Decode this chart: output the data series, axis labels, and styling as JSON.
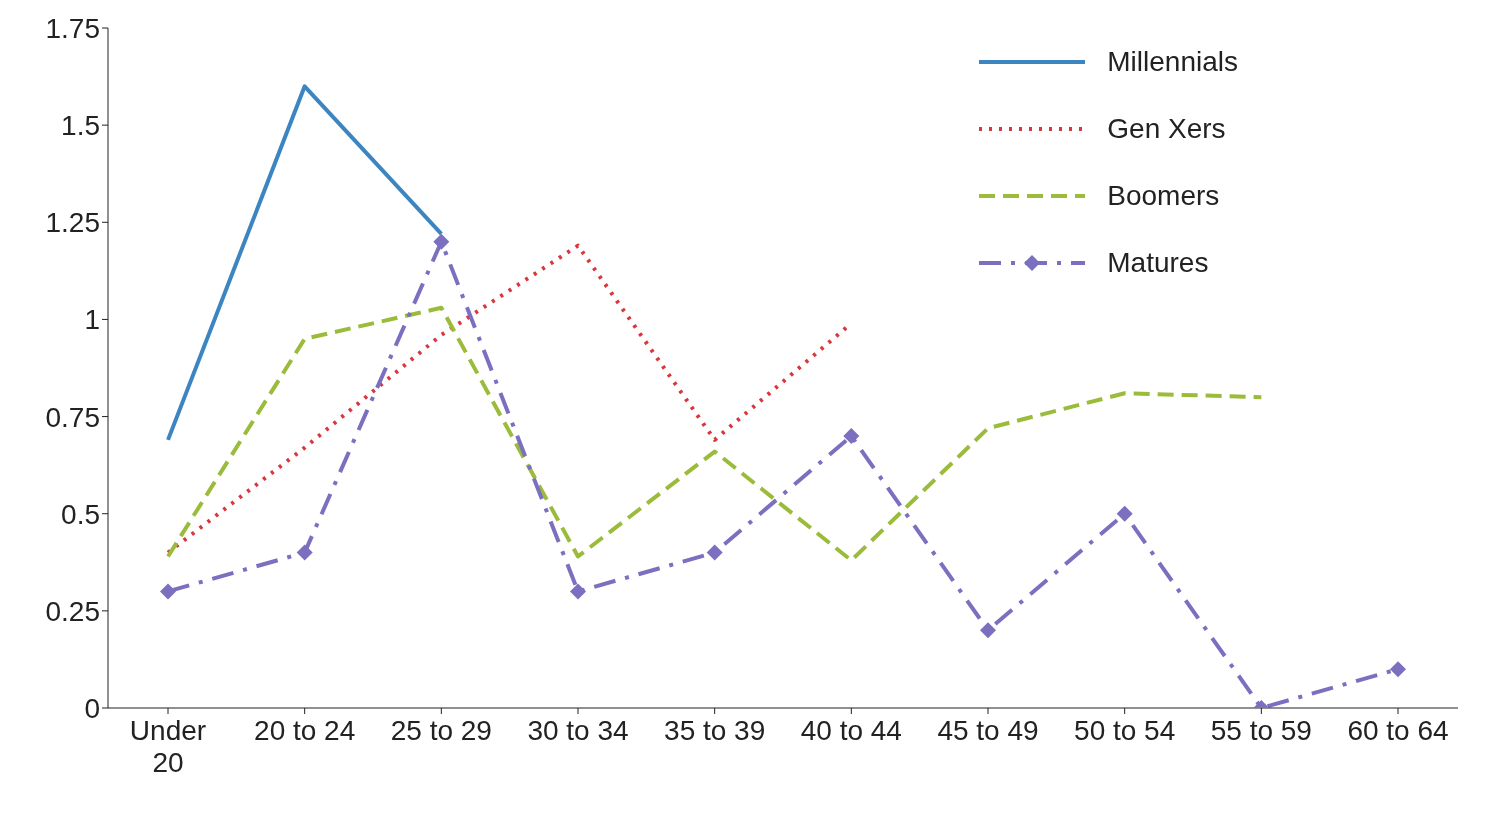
{
  "chart_data": {
    "type": "line",
    "categories": [
      "Under 20",
      "20 to 24",
      "25 to 29",
      "30 to 34",
      "35 to 39",
      "40 to 44",
      "45 to 49",
      "50 to 54",
      "55 to 59",
      "60 to 64"
    ],
    "series": [
      {
        "name": "Millennials",
        "color": "#3d85c0",
        "line_style": "solid",
        "marker": "none",
        "values": [
          0.69,
          1.6,
          1.22,
          null,
          null,
          null,
          null,
          null,
          null,
          null
        ]
      },
      {
        "name": "Gen Xers",
        "color": "#d9363e",
        "line_style": "dotted",
        "marker": "none",
        "values": [
          0.4,
          0.67,
          0.96,
          1.19,
          0.69,
          0.99,
          null,
          null,
          null,
          null
        ]
      },
      {
        "name": "Boomers",
        "color": "#9bbb3b",
        "line_style": "dashed",
        "marker": "none",
        "values": [
          0.39,
          0.95,
          1.03,
          0.39,
          0.66,
          0.38,
          0.72,
          0.81,
          0.8,
          null
        ]
      },
      {
        "name": "Matures",
        "color": "#7b6fc0",
        "line_style": "dashdot",
        "marker": "diamond",
        "values": [
          0.3,
          0.4,
          1.2,
          0.3,
          0.4,
          0.7,
          0.2,
          0.5,
          0,
          0.1
        ]
      }
    ],
    "ylim": [
      0,
      1.75
    ],
    "yticks": [
      0,
      0.25,
      0.5,
      0.75,
      1,
      1.25,
      1.5,
      1.75
    ],
    "grid": false,
    "legend": "top right"
  }
}
